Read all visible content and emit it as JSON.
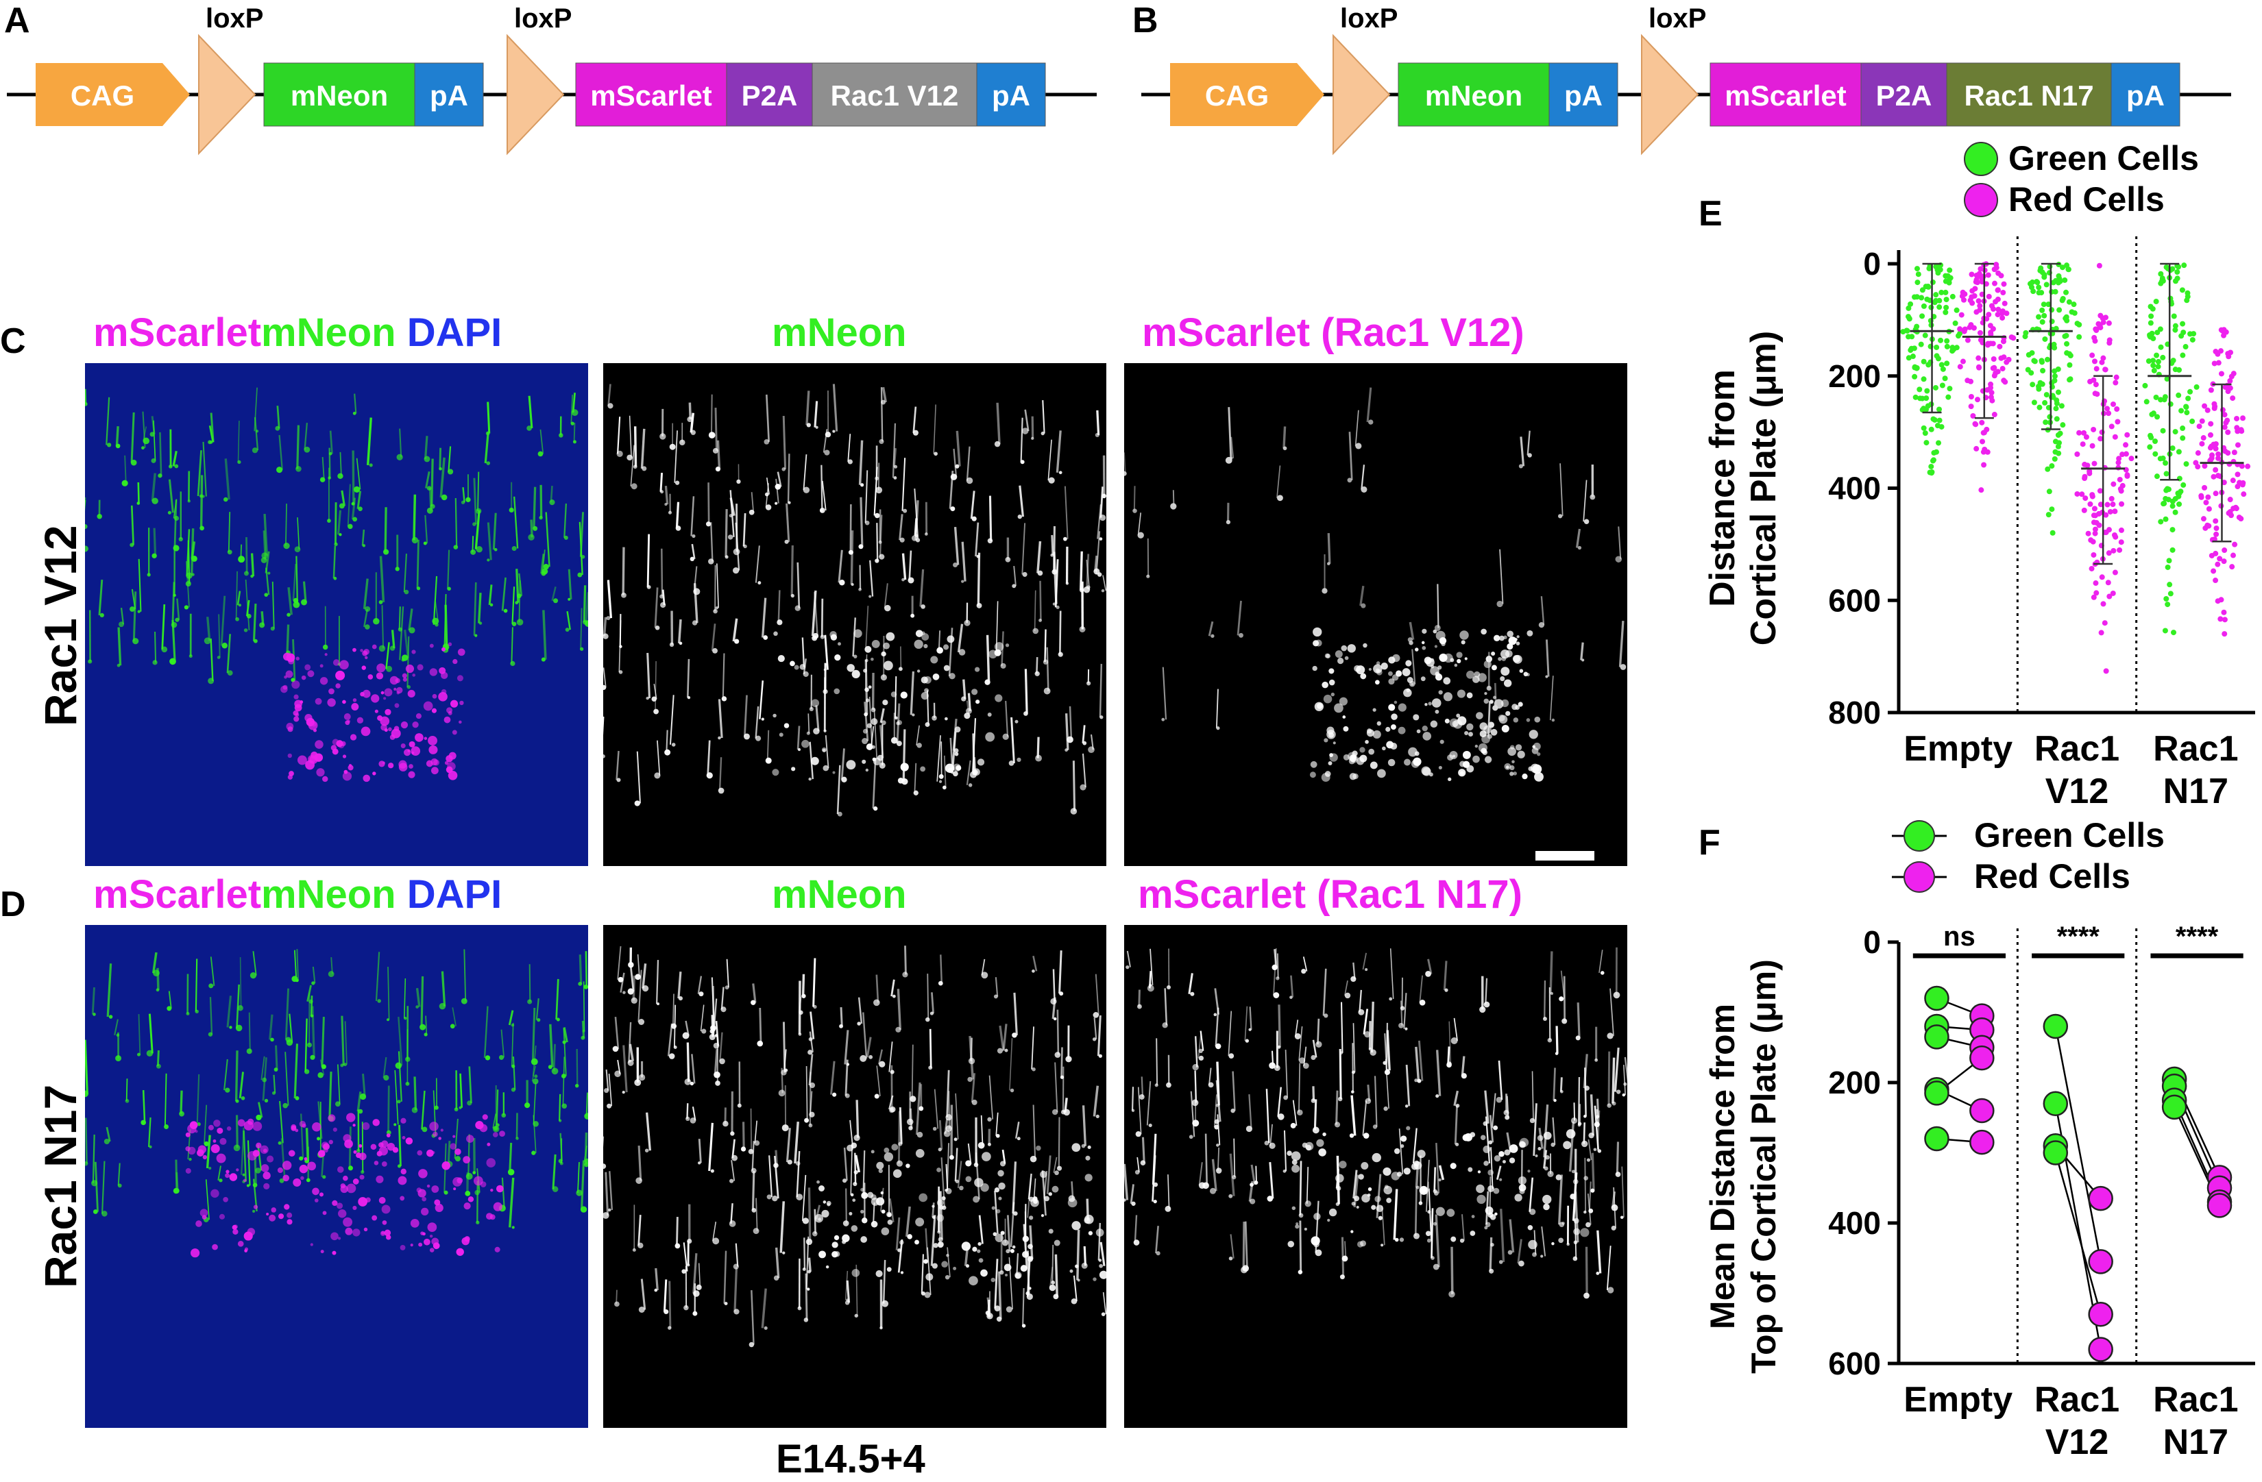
{
  "panels": {
    "A": "A",
    "B": "B",
    "C": "C",
    "D": "D",
    "E": "E",
    "F": "F"
  },
  "constructs": {
    "A": {
      "loxp_labels": [
        "loxP",
        "loxP"
      ],
      "elements": [
        {
          "label": "CAG",
          "color": "#f7a640"
        },
        {
          "label": "mNeon",
          "color": "#2dd626"
        },
        {
          "label": "pA",
          "color": "#1f7fd1"
        },
        {
          "label": "mScarlet",
          "color": "#e21ed8"
        },
        {
          "label": "P2A",
          "color": "#8b36b8"
        },
        {
          "label": "Rac1 V12",
          "color": "#8f8f8f"
        },
        {
          "label": "pA",
          "color": "#1f7fd1"
        }
      ]
    },
    "B": {
      "loxp_labels": [
        "loxP",
        "loxP"
      ],
      "elements": [
        {
          "label": "CAG",
          "color": "#f7a640"
        },
        {
          "label": "mNeon",
          "color": "#2dd626"
        },
        {
          "label": "pA",
          "color": "#1f7fd1"
        },
        {
          "label": "mScarlet",
          "color": "#e21ed8"
        },
        {
          "label": "P2A",
          "color": "#8b36b8"
        },
        {
          "label": "Rac1 N17",
          "color": "#6b7d35"
        },
        {
          "label": "pA",
          "color": "#1f7fd1"
        }
      ]
    }
  },
  "colors": {
    "green": "#33ee22",
    "magenta": "#ee22ee",
    "blue": "#2233ee"
  },
  "images": {
    "C": {
      "row_label": "Rac1 V12",
      "titles": {
        "merge": {
          "p1": "mScarlet",
          "p2": "mNeon",
          "p3": " DAPI"
        },
        "green": "mNeon",
        "red": "mScarlet (Rac1 V12)"
      }
    },
    "D": {
      "row_label": "Rac1 N17",
      "titles": {
        "merge": {
          "p1": "mScarlet",
          "p2": "mNeon",
          "p3": " DAPI"
        },
        "green": "mNeon",
        "red": "mScarlet (Rac1 N17)"
      }
    },
    "footer": "E14.5+4"
  },
  "chart_data": [
    {
      "panel": "E",
      "type": "scatter",
      "ylabel": [
        "Distance from",
        "Cortical Plate (μm)"
      ],
      "ylim": [
        0,
        800
      ],
      "y_inverted": true,
      "yticks": [
        0,
        200,
        400,
        600,
        800
      ],
      "legend": [
        {
          "name": "Green Cells",
          "color": "#33ee22"
        },
        {
          "name": "Red Cells",
          "color": "#ee22ee"
        }
      ],
      "groups": [
        {
          "label": [
            "Empty"
          ],
          "green": {
            "mean": 120,
            "sd_low": 0,
            "sd_high": 265
          },
          "red": {
            "mean": 130,
            "sd_low": 0,
            "sd_high": 275
          }
        },
        {
          "label": [
            "Rac1",
            "V12"
          ],
          "green": {
            "mean": 120,
            "sd_low": 0,
            "sd_high": 295
          },
          "red": {
            "mean": 365,
            "sd_low": 200,
            "sd_high": 535
          }
        },
        {
          "label": [
            "Rac1",
            "N17"
          ],
          "green": {
            "mean": 200,
            "sd_low": 0,
            "sd_high": 385
          },
          "red": {
            "mean": 355,
            "sd_low": 215,
            "sd_high": 495
          }
        }
      ]
    },
    {
      "panel": "F",
      "type": "line",
      "ylabel": [
        "Mean Distance from",
        "Top of Cortical Plate (μm)"
      ],
      "ylim": [
        0,
        600
      ],
      "y_inverted": true,
      "yticks": [
        0,
        200,
        400,
        600
      ],
      "legend": [
        {
          "name": "Green Cells",
          "color": "#33ee22"
        },
        {
          "name": "Red Cells",
          "color": "#ee22ee"
        }
      ],
      "groups": [
        {
          "label": [
            "Empty"
          ],
          "significance": "ns",
          "pairs": [
            [
              80,
              105
            ],
            [
              120,
              125
            ],
            [
              135,
              150
            ],
            [
              210,
              240
            ],
            [
              215,
              165
            ],
            [
              280,
              285
            ]
          ]
        },
        {
          "label": [
            "Rac1",
            "V12"
          ],
          "significance": "****",
          "pairs": [
            [
              120,
              455
            ],
            [
              230,
              580
            ],
            [
              290,
              365
            ],
            [
              300,
              530
            ]
          ]
        },
        {
          "label": [
            "Rac1",
            "N17"
          ],
          "significance": "****",
          "pairs": [
            [
              195,
              335
            ],
            [
              205,
              350
            ],
            [
              225,
              370
            ],
            [
              235,
              375
            ]
          ]
        }
      ]
    }
  ]
}
